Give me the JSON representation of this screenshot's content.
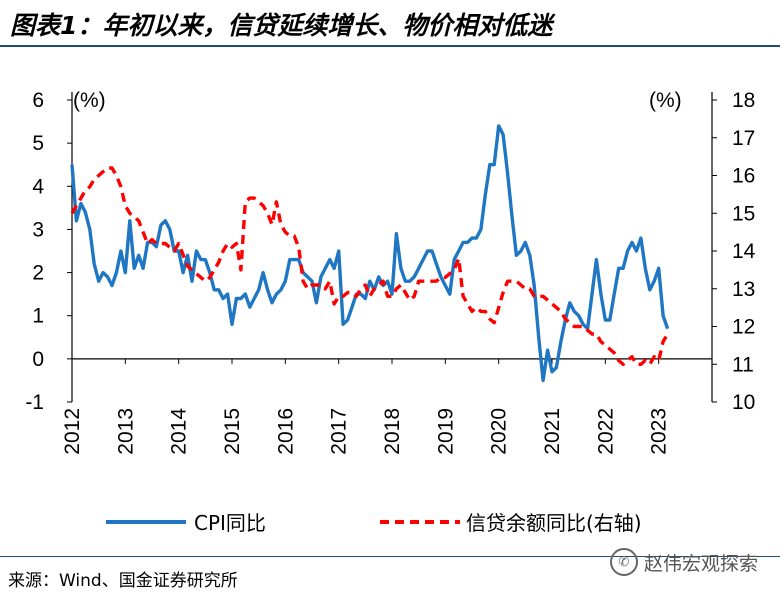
{
  "header": {
    "title": "图表1：年初以来，信贷延续增长、物价相对低迷"
  },
  "footer": {
    "source": "来源：Wind、国金证券研究所",
    "watermark": "赵伟宏观探索"
  },
  "colors": {
    "cpi": "#1f77c3",
    "credit": "#ff0000",
    "rule": "#1f4e79"
  },
  "chart_data": {
    "type": "line",
    "x_tick_labels": [
      "2012",
      "2013",
      "2014",
      "2015",
      "2016",
      "2017",
      "2018",
      "2019",
      "2020",
      "2021",
      "2022",
      "2023"
    ],
    "left_axis": {
      "unit_label": "(%)",
      "ylim": [
        -1,
        6
      ],
      "ticks": [
        "-1",
        "0",
        "1",
        "2",
        "3",
        "4",
        "5",
        "6"
      ]
    },
    "right_axis": {
      "unit_label": "(%)",
      "ylim": [
        10,
        18
      ],
      "ticks": [
        "10",
        "11",
        "12",
        "13",
        "14",
        "15",
        "16",
        "17",
        "18"
      ]
    },
    "legend": {
      "placement": "bottom",
      "entries": [
        "CPI同比",
        "信贷余额同比(右轴)"
      ]
    },
    "x_start_year": 2012,
    "series": [
      {
        "name": "CPI同比",
        "axis": "left",
        "style": "solid",
        "values": [
          4.5,
          3.2,
          3.6,
          3.4,
          3.0,
          2.2,
          1.8,
          2.0,
          1.9,
          1.7,
          2.0,
          2.5,
          2.0,
          3.2,
          2.1,
          2.4,
          2.1,
          2.7,
          2.7,
          2.6,
          3.1,
          3.2,
          3.0,
          2.5,
          2.5,
          2.0,
          2.4,
          1.8,
          2.5,
          2.3,
          2.3,
          2.0,
          1.6,
          1.6,
          1.4,
          1.5,
          0.8,
          1.4,
          1.4,
          1.5,
          1.2,
          1.4,
          1.6,
          2.0,
          1.6,
          1.3,
          1.5,
          1.6,
          1.8,
          2.3,
          2.3,
          2.3,
          2.0,
          1.9,
          1.8,
          1.3,
          1.9,
          2.1,
          2.3,
          2.1,
          2.5,
          0.8,
          0.9,
          1.2,
          1.5,
          1.5,
          1.4,
          1.8,
          1.6,
          1.9,
          1.7,
          1.8,
          1.5,
          2.9,
          2.1,
          1.8,
          1.8,
          1.9,
          2.1,
          2.3,
          2.5,
          2.5,
          2.2,
          1.9,
          1.7,
          1.5,
          2.3,
          2.5,
          2.7,
          2.7,
          2.8,
          2.8,
          3.0,
          3.8,
          4.5,
          4.5,
          5.4,
          5.2,
          4.3,
          3.3,
          2.4,
          2.5,
          2.7,
          2.4,
          1.7,
          0.5,
          -0.5,
          0.2,
          -0.3,
          -0.2,
          0.4,
          0.9,
          1.3,
          1.1,
          1.0,
          0.8,
          0.7,
          1.5,
          2.3,
          1.5,
          0.9,
          0.9,
          1.5,
          2.1,
          2.1,
          2.5,
          2.7,
          2.5,
          2.8,
          2.1,
          1.6,
          1.8,
          2.1,
          1.0,
          0.7
        ]
      },
      {
        "name": "信贷余额同比(右轴)",
        "axis": "right",
        "style": "dashed",
        "values": [
          15.0,
          15.2,
          15.4,
          15.6,
          15.7,
          15.9,
          16.0,
          16.1,
          16.2,
          16.2,
          16.0,
          15.7,
          15.2,
          15.0,
          14.9,
          14.8,
          14.5,
          14.2,
          14.3,
          14.2,
          14.2,
          14.2,
          14.1,
          14.0,
          14.2,
          13.9,
          13.6,
          13.5,
          13.4,
          13.3,
          13.2,
          13.3,
          13.5,
          13.7,
          14.0,
          14.2,
          14.1,
          14.2,
          13.5,
          15.3,
          15.4,
          15.4,
          15.3,
          15.2,
          15.0,
          14.7,
          15.3,
          14.7,
          14.5,
          14.4,
          14.4,
          14.1,
          13.2,
          13.0,
          13.1,
          13.1,
          13.1,
          13.0,
          13.2,
          12.6,
          12.8,
          12.8,
          12.9,
          12.9,
          12.8,
          13.0,
          13.1,
          12.8,
          13.0,
          13.1,
          13.2,
          12.8,
          12.8,
          13.0,
          13.1,
          12.9,
          12.7,
          12.8,
          13.2,
          13.2,
          13.2,
          13.2,
          13.2,
          13.3,
          13.3,
          13.4,
          13.5,
          13.8,
          12.8,
          12.6,
          12.4,
          12.5,
          12.4,
          12.4,
          12.2,
          12.1,
          12.5,
          12.9,
          13.2,
          13.2,
          13.2,
          13.1,
          13.0,
          13.0,
          12.8,
          12.8,
          12.8,
          12.7,
          12.6,
          12.5,
          12.4,
          12.2,
          12.1,
          12.0,
          12.0,
          12.0,
          11.9,
          11.8,
          11.8,
          11.6,
          11.5,
          11.4,
          11.3,
          11.1,
          11.0,
          11.1,
          11.2,
          11.0,
          11.0,
          11.1,
          11.0,
          11.2,
          11.1,
          11.6,
          11.8
        ]
      }
    ]
  }
}
